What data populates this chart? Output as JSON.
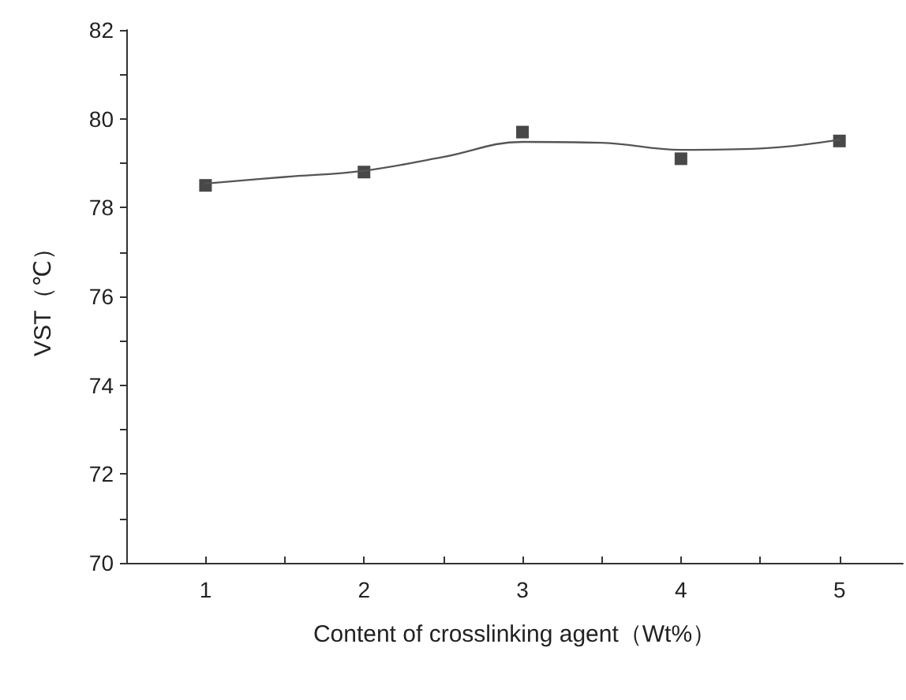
{
  "chart_data": {
    "type": "scatter",
    "xlabel": "Content of crosslinking agent（Wt%）",
    "ylabel": "VST（℃）",
    "x": [
      1,
      2,
      3,
      4,
      5
    ],
    "series": [
      {
        "color": "#1a1a1a",
        "marker": "square",
        "values": [
          78.5,
          78.8,
          79.7,
          79.1,
          79.5
        ]
      },
      {
        "type": "line",
        "color": "#555555",
        "marker": "none",
        "line_style": "solid",
        "x": [
          1,
          1.5,
          2,
          2.5,
          3,
          3.5,
          4,
          4.5,
          5
        ],
        "values": [
          78.54,
          78.69,
          78.83,
          79.14,
          79.48,
          79.46,
          79.3,
          79.33,
          79.53
        ]
      }
    ],
    "xlim": [
      0.5,
      5.4
    ],
    "ylim": [
      70,
      82
    ],
    "xticks": [
      {
        "value": 0.5,
        "label": null
      },
      1,
      {
        "value": 1.5,
        "label": null
      },
      2,
      {
        "value": 2.5,
        "label": null
      },
      3,
      {
        "value": 3.5,
        "label": null
      },
      4,
      {
        "value": 4.5,
        "label": null
      },
      5
    ],
    "yticks": [
      70,
      {
        "value": 71,
        "label": null
      },
      72,
      {
        "value": 73,
        "label": null
      },
      74,
      {
        "value": 75,
        "label": null
      },
      76,
      {
        "value": 77,
        "label": null
      },
      78,
      {
        "value": 79,
        "label": null
      },
      80,
      {
        "value": 81,
        "label": null
      },
      82
    ],
    "grid": false
  }
}
